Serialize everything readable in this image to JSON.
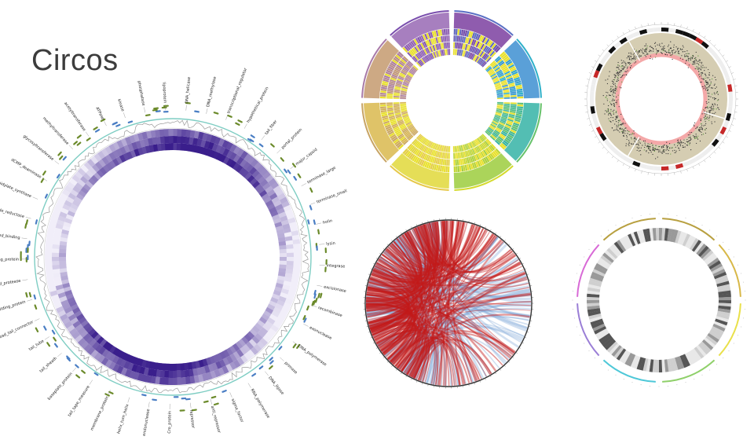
{
  "title": "Circos",
  "main_labels": [
    "DNA_helicase",
    "DNA_methylase",
    "transcriptional_regulator",
    "hypothetical_protein",
    "tail_fiber",
    "portal_protein",
    "major_capsid",
    "terminase_large",
    "terminase_small",
    "holin",
    "lysin",
    "integrase",
    "excisionase",
    "recombinase",
    "exonuclease",
    "DNA_polymerase",
    "primase",
    "DNA_ligase",
    "RNA_polymerase",
    "sigma_factor",
    "anti_repressor",
    "repressor",
    "Cro_protein",
    "endonuclease",
    "helix_turn_helix",
    "membrane_protein",
    "tail_tape_measure",
    "baseplate_protein",
    "tail_sheath",
    "tail_tube",
    "head_tail_connector",
    "scaffolding_protein",
    "prohead_protease",
    "DNA_binding_protein",
    "single_strand_binding",
    "ribonucleotide_reductase",
    "thymidylate_synthase",
    "dCMP_deaminase",
    "glycosyltransferase",
    "methyltransferase",
    "acetyltransferase",
    "ATPase",
    "kinase",
    "phosphatase",
    "lipoprotein"
  ],
  "colors": {
    "title": "#3c3c3c",
    "outer_ring": "#7ecdc3",
    "green_marks": "#6b8a2a",
    "blue_marks": "#4a7ec4",
    "heat_dark": "#3a1e8c",
    "heat_light": "#f1eef9",
    "gray_line": "#9a9a9a",
    "chord_red": "#c41a1a",
    "chord_blue": "#7da6d6",
    "beige_ring": "#d5cdb2",
    "pink_ring": "#f4a8a8"
  }
}
